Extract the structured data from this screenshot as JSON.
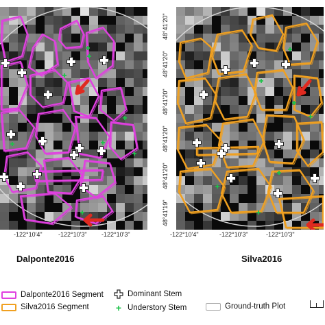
{
  "panels": [
    {
      "title": "Dalponte2016",
      "segment_color": "#e040e0",
      "x_ticks": [
        "-122°10'4\"",
        "-122°10'3\"",
        "-122°10'3\""
      ],
      "y_ticks": []
    },
    {
      "title": "Silva2016",
      "segment_color": "#f0a020",
      "x_ticks": [
        "-122°10'4\"",
        "-122°10'3\"",
        "-122°10'3\""
      ],
      "y_ticks": [
        "48°41'20\"",
        "48°41'20\"",
        "48°41'20\"",
        "48°41'20\"",
        "48°41'20\"",
        "48°41'19\""
      ]
    }
  ],
  "legend": {
    "dalponte_segment": "Dalponte2016 Segment",
    "silva_segment": "Silva2016 Segment",
    "dominant_stem": "Dominant Stem",
    "understory_stem": "Understory Stem",
    "ground_truth": "Ground-truth Plot",
    "colors": {
      "dalponte": "#e040e0",
      "silva": "#f0a020",
      "understory": "#1ec24a",
      "arrow": "#e02a20",
      "plot": "#c8c8c8"
    }
  },
  "icons": [
    "plus-white-icon",
    "plus-green-icon",
    "red-arrow-icon",
    "scale-bar-icon"
  ]
}
